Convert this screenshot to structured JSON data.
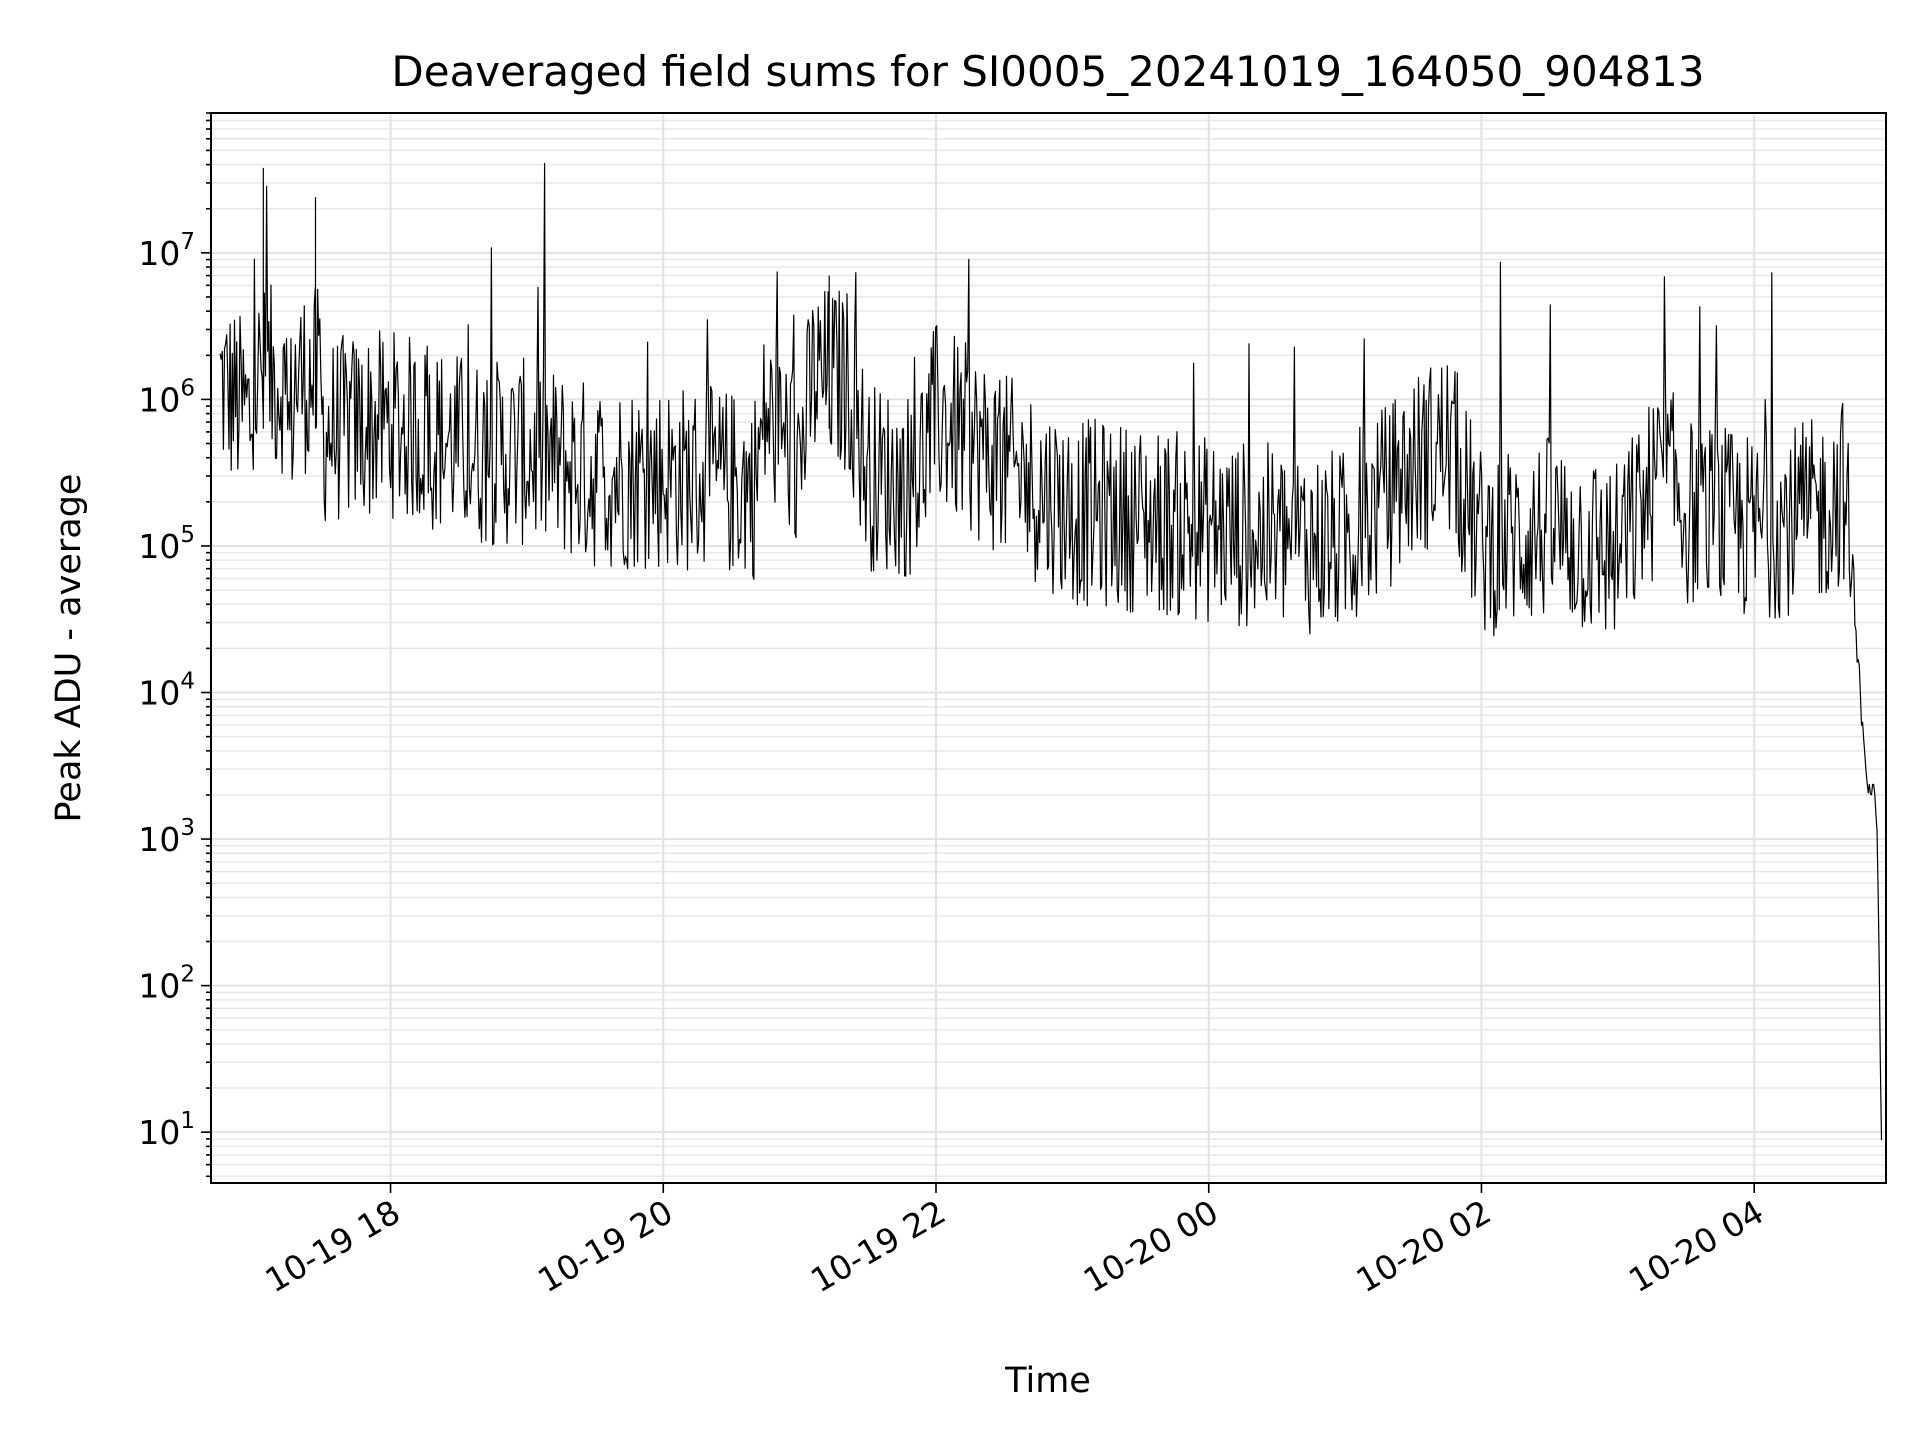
{
  "chart_data": {
    "type": "line",
    "title": "Deaveraged field sums for SI0005_20241019_164050_904813",
    "xlabel": "Time",
    "ylabel": "Peak ADU - average",
    "yscale": "log",
    "xlim": [
      "2024-10-19 16:41",
      "2024-10-20 04:58"
    ],
    "ylim": [
      4.5,
      90000000
    ],
    "grid": true,
    "x_ticks": [
      {
        "t": "2024-10-19 18:00",
        "label": "10-19 18"
      },
      {
        "t": "2024-10-19 20:00",
        "label": "10-19 20"
      },
      {
        "t": "2024-10-19 22:00",
        "label": "10-19 22"
      },
      {
        "t": "2024-10-20 00:00",
        "label": "10-20 00"
      },
      {
        "t": "2024-10-20 02:00",
        "label": "10-20 02"
      },
      {
        "t": "2024-10-20 04:00",
        "label": "10-20 04"
      }
    ],
    "y_ticks": [
      {
        "value": 10,
        "base": "10",
        "exp": "1"
      },
      {
        "value": 100,
        "base": "10",
        "exp": "2"
      },
      {
        "value": 1000,
        "base": "10",
        "exp": "3"
      },
      {
        "value": 10000,
        "base": "10",
        "exp": "4"
      },
      {
        "value": 100000,
        "base": "10",
        "exp": "5"
      },
      {
        "value": 1000000,
        "base": "10",
        "exp": "6"
      },
      {
        "value": 10000000,
        "base": "10",
        "exp": "7"
      }
    ],
    "series": [
      {
        "color": "#000000",
        "x": [
          "2024-10-19 16:45",
          "2024-10-19 17:00",
          "2024-10-19 17:04",
          "2024-10-19 17:15",
          "2024-10-19 17:27",
          "2024-10-19 17:30",
          "2024-10-19 18:00",
          "2024-10-19 18:40",
          "2024-10-19 19:00",
          "2024-10-19 19:30",
          "2024-10-19 20:00",
          "2024-10-19 20:40",
          "2024-10-19 20:45",
          "2024-10-19 21:00",
          "2024-10-19 21:13",
          "2024-10-19 21:30",
          "2024-10-19 21:50",
          "2024-10-19 22:00",
          "2024-10-19 22:30",
          "2024-10-19 23:00",
          "2024-10-19 23:30",
          "2024-10-20 00:00",
          "2024-10-20 00:30",
          "2024-10-20 01:00",
          "2024-10-20 01:30",
          "2024-10-20 01:45",
          "2024-10-20 02:00",
          "2024-10-20 02:30",
          "2024-10-20 03:00",
          "2024-10-20 03:20",
          "2024-10-20 03:30",
          "2024-10-20 04:00",
          "2024-10-20 04:30",
          "2024-10-20 04:40",
          "2024-10-20 04:45",
          "2024-10-20 04:50",
          "2024-10-20 04:52",
          "2024-10-20 04:54",
          "2024-10-20 04:55",
          "2024-10-20 04:56"
        ],
        "y": [
          1500000,
          800000,
          38000000,
          600000,
          24000000,
          700000,
          800000,
          500000,
          500000,
          350000,
          350000,
          300000,
          900000,
          450000,
          7000000,
          350000,
          300000,
          900000,
          400000,
          200000,
          180000,
          150000,
          130000,
          120000,
          400000,
          600000,
          120000,
          150000,
          100000,
          400000,
          200000,
          150000,
          200000,
          300000,
          20000,
          2500,
          2200,
          1200,
          200,
          8
        ]
      }
    ]
  }
}
